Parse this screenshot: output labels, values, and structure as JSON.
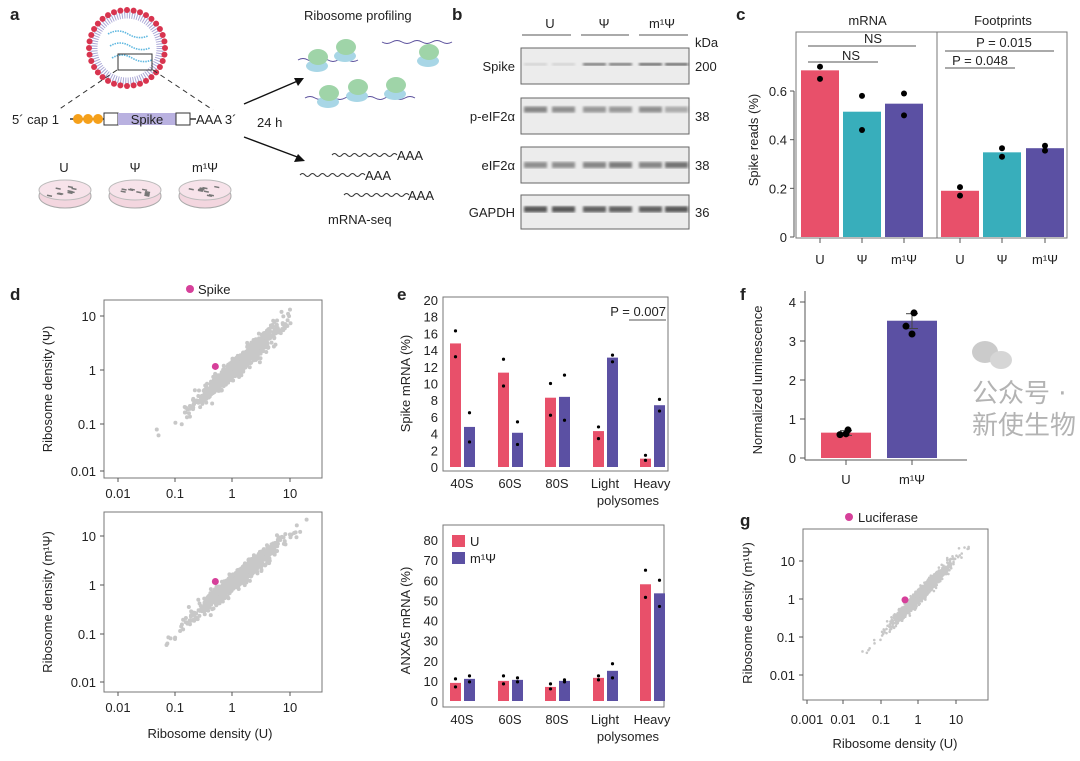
{
  "colors": {
    "U": "#e8506a",
    "Psi": "#38aebb",
    "m1Psi": "#5b50a3",
    "highlight": "#d6409a",
    "scatter": "#c8c8c8"
  },
  "panel_labels": [
    "a",
    "b",
    "c",
    "d",
    "e",
    "f",
    "g"
  ],
  "panel_a": {
    "construct": {
      "cap": "5´ cap 1",
      "gene": "Spike",
      "tail": "AAA 3´"
    },
    "dishes": [
      "U",
      "Ψ",
      "m¹Ψ"
    ],
    "time": "24 h",
    "ribo_title": "Ribosome profiling",
    "polyA": [
      "AAA",
      "AAA",
      "AAA"
    ],
    "mrnaseq_title": "mRNA-seq"
  },
  "panel_b": {
    "lanes": [
      "U",
      "Ψ",
      "m¹Ψ"
    ],
    "unit": "kDa",
    "blots": [
      {
        "name": "Spike",
        "kda": "200"
      },
      {
        "name": "p-eIF2α",
        "kda": "38"
      },
      {
        "name": "eIF2α",
        "kda": "38"
      },
      {
        "name": "GAPDH",
        "kda": "36"
      }
    ]
  },
  "watermark": "公众号 · 新使生物",
  "chart_data": [
    {
      "id": "c",
      "type": "bar",
      "ylabel": "Spike reads (%)",
      "ylim": [
        0,
        0.75
      ],
      "yticks": [
        "0",
        "0.2",
        "0.4",
        "0.6"
      ],
      "ytick_values": [
        0,
        0.2,
        0.4,
        0.6
      ],
      "categories": [
        "U",
        "Ψ",
        "m¹Ψ"
      ],
      "facets": [
        {
          "title": "mRNA",
          "values": [
            0.685,
            0.515,
            0.548
          ],
          "points": [
            [
              0.7,
              0.65
            ],
            [
              0.58,
              0.44
            ],
            [
              0.59,
              0.5
            ]
          ],
          "annotations": [
            "NS",
            "NS"
          ]
        },
        {
          "title": "Footprints",
          "values": [
            0.19,
            0.348,
            0.365
          ],
          "points": [
            [
              0.205,
              0.17
            ],
            [
              0.365,
              0.33
            ],
            [
              0.375,
              0.355
            ]
          ],
          "annotations": [
            "P = 0.015",
            "P = 0.048"
          ]
        }
      ]
    },
    {
      "id": "d",
      "type": "scatter",
      "scale": "log",
      "legend": "Spike",
      "xticks": [
        "0.01",
        "0.1",
        "1",
        "10"
      ],
      "yticks": [
        "10",
        "1",
        "0.1",
        "0.01"
      ],
      "xlabel": "Ribosome density (U)",
      "plots": [
        {
          "ylabel": "Ribosome density (Ψ)",
          "highlight": [
            0.5,
            1.3
          ]
        },
        {
          "ylabel": "Ribosome density (m¹Ψ)",
          "highlight": [
            0.5,
            1.2
          ]
        }
      ]
    },
    {
      "id": "e",
      "type": "bar",
      "categories": [
        "40S",
        "60S",
        "80S",
        "Light",
        "Heavy"
      ],
      "category_note": "polysomes",
      "legend": [
        "U",
        "m¹Ψ"
      ],
      "plots": [
        {
          "ylabel": "Spike mRNA (%)",
          "ylim": [
            0,
            20
          ],
          "yticks": [
            "0",
            "2",
            "4",
            "6",
            "8",
            "10",
            "12",
            "14",
            "16",
            "18",
            "20"
          ],
          "annotation": "P = 0.007",
          "series": [
            {
              "name": "U",
              "values": [
                14.8,
                11.3,
                8.3,
                4.3,
                1.0
              ],
              "points": [
                [
                  16.3,
                  13.2
                ],
                [
                  12.9,
                  9.7
                ],
                [
                  10.0,
                  6.2
                ],
                [
                  4.8,
                  3.4
                ],
                [
                  1.4,
                  0.8
                ]
              ]
            },
            {
              "name": "m¹Ψ",
              "values": [
                4.8,
                4.1,
                8.4,
                13.1,
                7.4
              ],
              "points": [
                [
                  6.5,
                  3.0
                ],
                [
                  5.4,
                  2.7
                ],
                [
                  11.0,
                  5.6
                ],
                [
                  13.4,
                  12.6
                ],
                [
                  8.1,
                  6.7
                ]
              ]
            }
          ]
        },
        {
          "ylabel": "ANXA5 mRNA (%)",
          "ylim": [
            0,
            80
          ],
          "yticks": [
            "0",
            "10",
            "20",
            "30",
            "40",
            "50",
            "60",
            "70",
            "80"
          ],
          "series": [
            {
              "name": "U",
              "values": [
                9,
                10,
                7,
                11.5,
                58
              ],
              "points": [
                [
                  11,
                  7
                ],
                [
                  12.5,
                  8.5
                ],
                [
                  8.5,
                  6
                ],
                [
                  12.5,
                  10.5
                ],
                [
                  65,
                  51.5
                ]
              ]
            },
            {
              "name": "m¹Ψ",
              "values": [
                11,
                10.5,
                10,
                15,
                53.5
              ],
              "points": [
                [
                  12.5,
                  9.5
                ],
                [
                  11.5,
                  9.5
                ],
                [
                  10.5,
                  9.5
                ],
                [
                  18.5,
                  11.5
                ],
                [
                  60,
                  47
                ]
              ]
            }
          ]
        }
      ]
    },
    {
      "id": "f",
      "type": "bar",
      "ylabel": "Normalized luminescence",
      "ylim": [
        0,
        4
      ],
      "yticks": [
        "0",
        "1",
        "2",
        "3",
        "4"
      ],
      "categories": [
        "U",
        "m¹Ψ"
      ],
      "values": [
        0.65,
        3.52
      ],
      "error": [
        [
          0.58,
          0.7
        ],
        [
          3.32,
          3.7
        ]
      ],
      "points": [
        [
          0.72,
          0.6,
          0.62
        ],
        [
          3.72,
          3.38,
          3.18
        ]
      ]
    },
    {
      "id": "g",
      "type": "scatter",
      "scale": "log",
      "legend": "Luciferase",
      "xticks": [
        "0.001",
        "0.01",
        "0.1",
        "1",
        "10"
      ],
      "yticks": [
        "10",
        "1",
        "0.1",
        "0.01"
      ],
      "xlabel": "Ribosome density (U)",
      "ylabel": "Ribosome density (m¹Ψ)",
      "highlight": [
        0.45,
        0.95
      ]
    }
  ]
}
